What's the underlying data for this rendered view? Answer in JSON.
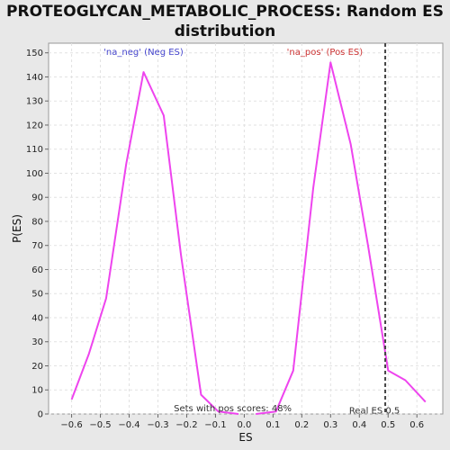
{
  "chart_data": {
    "type": "line",
    "title_line1": "PROTEOGLYCAN_METABOLIC_PROCESS: Random ES",
    "title_line2": "distribution",
    "xlabel": "ES",
    "ylabel": "P(ES)",
    "xlim": [
      -0.68,
      0.69
    ],
    "ylim": [
      0,
      154
    ],
    "x_ticks": [
      -0.6,
      -0.5,
      -0.4,
      -0.3,
      -0.2,
      -0.1,
      0.0,
      0.1,
      0.2,
      0.3,
      0.4,
      0.5,
      0.6
    ],
    "x_tick_labels": [
      "−0.6",
      "−0.5",
      "−0.4",
      "−0.3",
      "−0.2",
      "−0.1",
      "0.0",
      "0.1",
      "0.2",
      "0.3",
      "0.4",
      "0.5",
      "0.6"
    ],
    "y_ticks": [
      0,
      10,
      20,
      30,
      40,
      50,
      60,
      70,
      80,
      90,
      100,
      110,
      120,
      130,
      140,
      150
    ],
    "y_tick_labels": [
      "0",
      "10",
      "20",
      "30",
      "40",
      "50",
      "60",
      "70",
      "80",
      "90",
      "100",
      "110",
      "120",
      "130",
      "140",
      "150"
    ],
    "grid": true,
    "series": [
      {
        "name": "'na_neg' (Neg ES)",
        "color": "#ee44ee",
        "x": [
          -0.6,
          -0.54,
          -0.48,
          -0.41,
          -0.35,
          -0.28,
          -0.22,
          -0.15,
          -0.09,
          -0.02
        ],
        "y": [
          6,
          25,
          48,
          104,
          142,
          124,
          66,
          8,
          1,
          0
        ]
      },
      {
        "name": "'na_pos' (Pos ES)",
        "color": "#ee44ee",
        "x": [
          0.04,
          0.11,
          0.17,
          0.24,
          0.3,
          0.37,
          0.43,
          0.5,
          0.56,
          0.63
        ],
        "y": [
          0,
          1,
          18,
          94,
          146,
          112,
          70,
          18,
          14,
          5
        ]
      }
    ],
    "legend_neg": {
      "text": "'na_neg' (Neg ES)",
      "color": "#4444cc"
    },
    "legend_pos": {
      "text": "'na_pos' (Pos ES)",
      "color": "#cc3333"
    },
    "real_es": {
      "value": 0.49,
      "label": "Real ES 0.5"
    },
    "pos_scores_label": "Sets with pos scores: 48%"
  }
}
